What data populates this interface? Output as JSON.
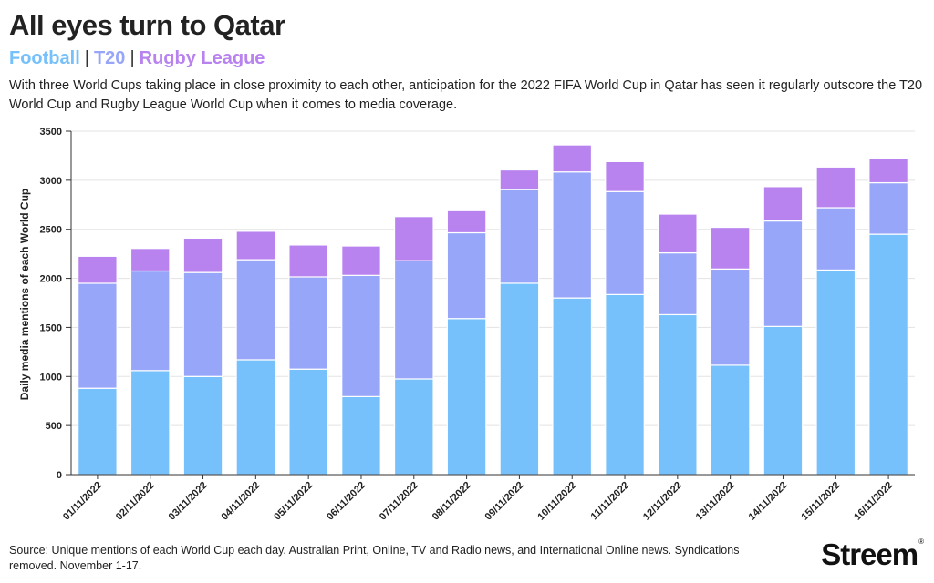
{
  "title": "All eyes turn to Qatar",
  "legend": {
    "football": "Football",
    "t20": "T20",
    "rugby": "Rugby League",
    "separator": "|"
  },
  "subtitle": "With three World Cups taking place in close proximity to each other, anticipation for the 2022 FIFA World Cup in Qatar has seen it regularly outscore the T20 World Cup and Rugby League World Cup when it comes to media coverage.",
  "source": "Source: Unique mentions of each World Cup each day. Australian Print, Online, TV and Radio news, and International Online news. Syndications removed. November 1-17.",
  "logo": "Streem",
  "colors": {
    "football": "#76c1fb",
    "t20": "#98a6fa",
    "rugby": "#b883ef"
  },
  "chart_data": {
    "type": "bar",
    "stacked": true,
    "ylabel": "Daily media mentions of each World Cup",
    "xlabel": "",
    "ylim": [
      0,
      3500
    ],
    "yticks": [
      0,
      500,
      1000,
      1500,
      2000,
      2500,
      3000,
      3500
    ],
    "grid": true,
    "categories": [
      "01/11/2022",
      "02/11/2022",
      "03/11/2022",
      "04/11/2022",
      "05/11/2022",
      "06/11/2022",
      "07/11/2022",
      "08/11/2022",
      "09/11/2022",
      "10/11/2022",
      "11/11/2022",
      "12/11/2022",
      "13/11/2022",
      "14/11/2022",
      "15/11/2022",
      "16/11/2022"
    ],
    "series": [
      {
        "name": "Football",
        "values": [
          880,
          1060,
          1000,
          1170,
          1075,
          795,
          975,
          1590,
          1950,
          1800,
          1835,
          1630,
          1115,
          1510,
          2085,
          2450
        ]
      },
      {
        "name": "T20",
        "values": [
          1070,
          1015,
          1060,
          1020,
          940,
          1235,
          1205,
          875,
          955,
          1285,
          1050,
          630,
          980,
          1075,
          635,
          525
        ]
      },
      {
        "name": "Rugby League",
        "values": [
          275,
          230,
          350,
          290,
          325,
          300,
          450,
          225,
          200,
          275,
          305,
          395,
          425,
          350,
          415,
          250
        ]
      }
    ]
  }
}
